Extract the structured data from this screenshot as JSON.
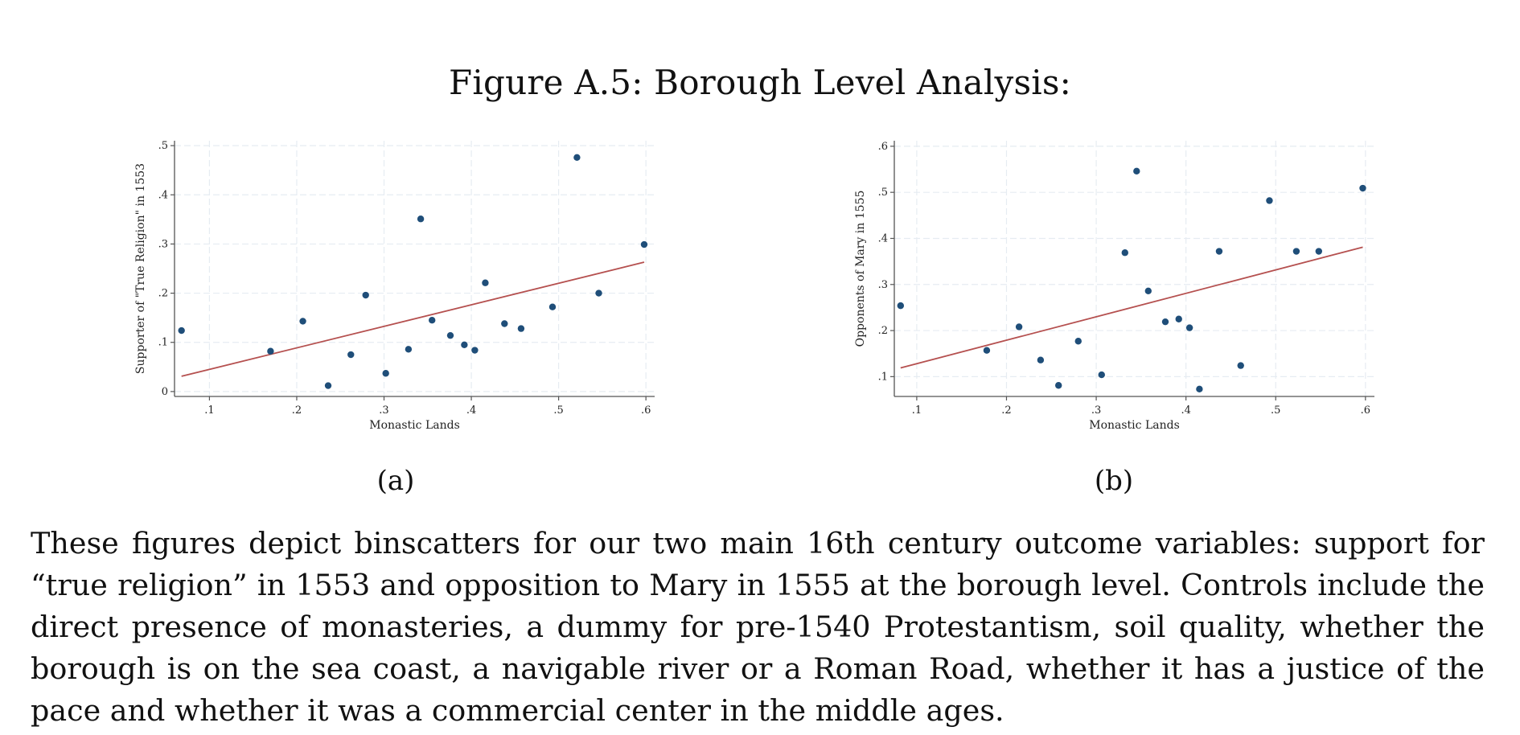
{
  "figure_title": "Figure A.5: Borough Level Analysis:",
  "panels": [
    {
      "label": "(a)"
    },
    {
      "label": "(b)"
    }
  ],
  "caption": "These figures depict binscatters for our two main 16th century outcome variables: support for “true religion” in 1553 and opposition to Mary in 1555 at the borough level. Controls include the direct presence of monasteries, a dummy for pre-1540 Protestantism, soil quality, whether the borough is on the sea coast, a navigable river or a Roman Road, whether it has a justice of the pace and whether it was a commercial center in the middle ages.",
  "colors": {
    "points": "#1f4e79",
    "fit_line": "#b5504f",
    "grid": "#e6ecf2",
    "axis": "#555555"
  },
  "chart_data": [
    {
      "type": "scatter",
      "title": "",
      "xlabel": "Monastic Lands",
      "ylabel": "Supporter of \"True Religion\" in 1553",
      "xlim": [
        0.06,
        0.61
      ],
      "ylim": [
        -0.01,
        0.51
      ],
      "xticks": [
        0.1,
        0.2,
        0.3,
        0.4,
        0.5,
        0.6
      ],
      "xtick_labels": [
        ".1",
        ".2",
        ".3",
        ".4",
        ".5",
        ".6"
      ],
      "yticks": [
        0,
        0.1,
        0.2,
        0.3,
        0.4,
        0.5
      ],
      "ytick_labels": [
        "0",
        ".1",
        ".2",
        ".3",
        ".4",
        ".5"
      ],
      "grid": true,
      "points": [
        {
          "x": 0.068,
          "y": 0.124
        },
        {
          "x": 0.17,
          "y": 0.082
        },
        {
          "x": 0.207,
          "y": 0.143
        },
        {
          "x": 0.236,
          "y": 0.012
        },
        {
          "x": 0.262,
          "y": 0.075
        },
        {
          "x": 0.279,
          "y": 0.196
        },
        {
          "x": 0.302,
          "y": 0.037
        },
        {
          "x": 0.328,
          "y": 0.086
        },
        {
          "x": 0.342,
          "y": 0.351
        },
        {
          "x": 0.355,
          "y": 0.145
        },
        {
          "x": 0.376,
          "y": 0.114
        },
        {
          "x": 0.392,
          "y": 0.095
        },
        {
          "x": 0.404,
          "y": 0.084
        },
        {
          "x": 0.416,
          "y": 0.221
        },
        {
          "x": 0.438,
          "y": 0.138
        },
        {
          "x": 0.457,
          "y": 0.128
        },
        {
          "x": 0.493,
          "y": 0.172
        },
        {
          "x": 0.521,
          "y": 0.476
        },
        {
          "x": 0.546,
          "y": 0.2
        },
        {
          "x": 0.598,
          "y": 0.299
        }
      ],
      "fit_line": [
        {
          "x": 0.068,
          "y": 0.031
        },
        {
          "x": 0.598,
          "y": 0.263
        }
      ]
    },
    {
      "type": "scatter",
      "title": "",
      "xlabel": "Monastic Lands",
      "ylabel": "Opponents of Mary in 1555",
      "xlim": [
        0.075,
        0.61
      ],
      "ylim": [
        0.057,
        0.612
      ],
      "xticks": [
        0.1,
        0.2,
        0.3,
        0.4,
        0.5,
        0.6
      ],
      "xtick_labels": [
        ".1",
        ".2",
        ".3",
        ".4",
        ".5",
        ".6"
      ],
      "yticks": [
        0.1,
        0.2,
        0.3,
        0.4,
        0.5,
        0.6
      ],
      "ytick_labels": [
        ".1",
        ".2",
        ".3",
        ".4",
        ".5",
        ".6"
      ],
      "grid": true,
      "points": [
        {
          "x": 0.082,
          "y": 0.254
        },
        {
          "x": 0.178,
          "y": 0.157
        },
        {
          "x": 0.214,
          "y": 0.208
        },
        {
          "x": 0.238,
          "y": 0.136
        },
        {
          "x": 0.258,
          "y": 0.081
        },
        {
          "x": 0.28,
          "y": 0.177
        },
        {
          "x": 0.306,
          "y": 0.104
        },
        {
          "x": 0.332,
          "y": 0.369
        },
        {
          "x": 0.345,
          "y": 0.546
        },
        {
          "x": 0.358,
          "y": 0.286
        },
        {
          "x": 0.377,
          "y": 0.219
        },
        {
          "x": 0.392,
          "y": 0.225
        },
        {
          "x": 0.404,
          "y": 0.206
        },
        {
          "x": 0.415,
          "y": 0.073
        },
        {
          "x": 0.437,
          "y": 0.372
        },
        {
          "x": 0.461,
          "y": 0.124
        },
        {
          "x": 0.493,
          "y": 0.482
        },
        {
          "x": 0.523,
          "y": 0.372
        },
        {
          "x": 0.548,
          "y": 0.372
        },
        {
          "x": 0.597,
          "y": 0.509
        }
      ],
      "fit_line": [
        {
          "x": 0.082,
          "y": 0.119
        },
        {
          "x": 0.597,
          "y": 0.381
        }
      ]
    }
  ]
}
